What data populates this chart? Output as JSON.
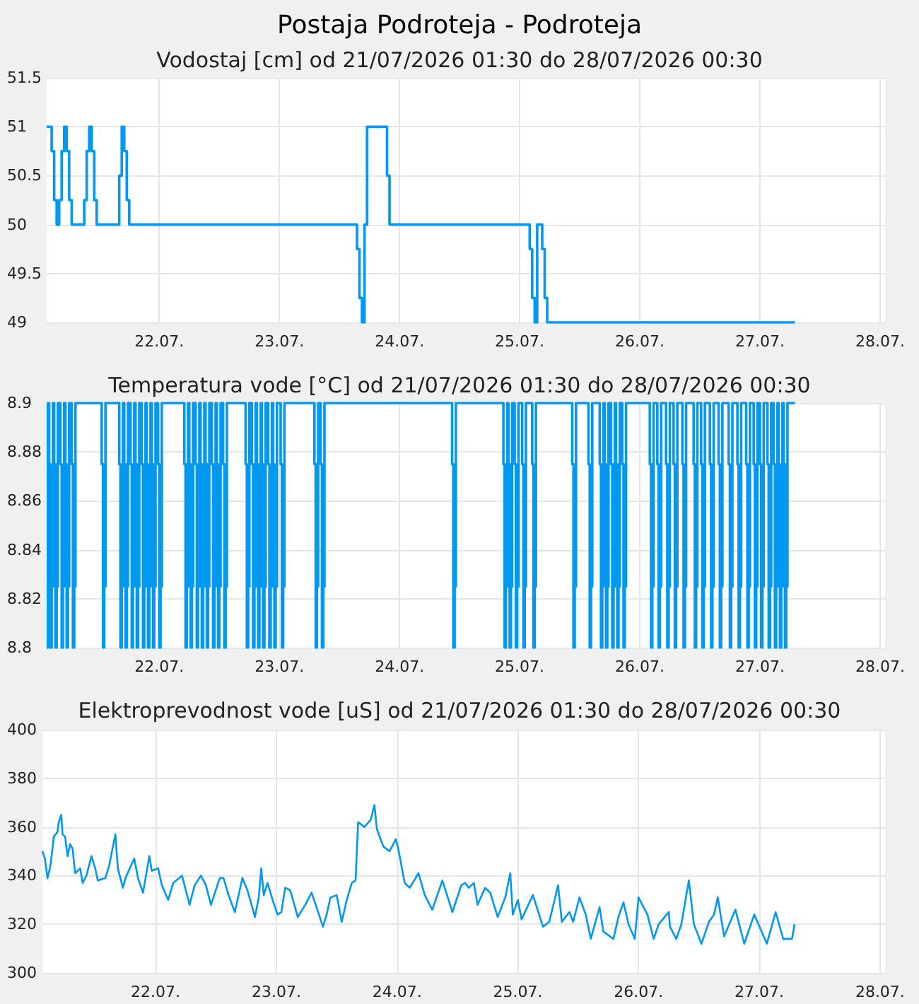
{
  "chart_data": [
    {
      "type": "step",
      "title": "Postaja Podroteja - Podroteja",
      "subtitle": "Vodostaj [cm] od 21/07/2026 01:30 do 28/07/2026 00:30",
      "color": "#0098f0",
      "marker": "none",
      "grid": true,
      "x": [
        "2026-07-21T01:30",
        "2026-07-21T02:30",
        "2026-07-21T03:00",
        "2026-07-21T03:30",
        "2026-07-21T04:00",
        "2026-07-21T04:30",
        "2026-07-21T05:00",
        "2026-07-21T05:30",
        "2026-07-21T06:00",
        "2026-07-21T06:30",
        "2026-07-21T09:00",
        "2026-07-21T09:30",
        "2026-07-21T10:00",
        "2026-07-21T10:30",
        "2026-07-21T11:00",
        "2026-07-21T11:30",
        "2026-07-21T16:00",
        "2026-07-21T16:30",
        "2026-07-21T17:00",
        "2026-07-21T17:30",
        "2026-07-21T18:00",
        "2026-07-23T15:30",
        "2026-07-23T16:00",
        "2026-07-23T16:30",
        "2026-07-23T17:00",
        "2026-07-23T17:30",
        "2026-07-23T21:30",
        "2026-07-23T22:00",
        "2026-07-25T02:00",
        "2026-07-25T02:30",
        "2026-07-25T03:00",
        "2026-07-25T03:30",
        "2026-07-25T04:30",
        "2026-07-25T05:00",
        "2026-07-25T05:30",
        "2026-07-27T07:00"
      ],
      "values": [
        51,
        50.75,
        50.25,
        50,
        50.25,
        50.75,
        51,
        50.75,
        50.25,
        50,
        50.25,
        50.75,
        51,
        50.75,
        50.25,
        50,
        50.5,
        51,
        50.75,
        50.25,
        50,
        49.75,
        49.25,
        49,
        50,
        51,
        50.5,
        50,
        49.75,
        49.25,
        49,
        50,
        49.75,
        49.25,
        49,
        49
      ],
      "xlim": [
        "2026-07-21T01:30",
        "2026-07-28T01:00"
      ],
      "xticks": [
        {
          "value": "2026-07-22",
          "label": "22.07."
        },
        {
          "value": "2026-07-23",
          "label": "23.07."
        },
        {
          "value": "2026-07-24",
          "label": "24.07."
        },
        {
          "value": "2026-07-25",
          "label": "25.07."
        },
        {
          "value": "2026-07-26",
          "label": "26.07."
        },
        {
          "value": "2026-07-27",
          "label": "27.07."
        },
        {
          "value": "2026-07-28",
          "label": "28.07."
        }
      ],
      "ylim": [
        49,
        51.5
      ],
      "yticks": [
        49,
        49.5,
        50,
        50.5,
        51,
        51.5
      ]
    },
    {
      "type": "step",
      "title": "Temperatura vode [°C] od 21/07/2026 01:30 do 28/07/2026 00:30",
      "color": "#0098f0",
      "marker": "none",
      "grid": true,
      "x": [
        "2026-07-21T01:30",
        "2026-07-21T01:45",
        "2026-07-21T02:00",
        "2026-07-21T02:15",
        "2026-07-21T02:30",
        "2026-07-21T02:45",
        "2026-07-21T03:00",
        "2026-07-21T03:15",
        "2026-07-21T03:30",
        "2026-07-21T03:45",
        "2026-07-21T04:15",
        "2026-07-21T04:30",
        "2026-07-21T04:45",
        "2026-07-21T05:00",
        "2026-07-21T05:15",
        "2026-07-21T05:30",
        "2026-07-21T05:45",
        "2026-07-21T06:00",
        "2026-07-21T06:30",
        "2026-07-21T06:45",
        "2026-07-21T07:00",
        "2026-07-21T07:15",
        "2026-07-21T12:30",
        "2026-07-21T12:45",
        "2026-07-21T13:00",
        "2026-07-21T13:15",
        "2026-07-21T16:00",
        "2026-07-21T16:15",
        "2026-07-21T16:30",
        "2026-07-21T16:45",
        "2026-07-21T17:00",
        "2026-07-21T17:15",
        "2026-07-21T17:30",
        "2026-07-21T17:45",
        "2026-07-21T18:15",
        "2026-07-21T18:30",
        "2026-07-21T18:45",
        "2026-07-21T19:00",
        "2026-07-21T19:15",
        "2026-07-21T19:30",
        "2026-07-21T19:45",
        "2026-07-21T20:00",
        "2026-07-21T20:30",
        "2026-07-21T20:45",
        "2026-07-21T21:00",
        "2026-07-21T21:15",
        "2026-07-21T21:30",
        "2026-07-21T21:45",
        "2026-07-21T22:00",
        "2026-07-21T22:15",
        "2026-07-21T22:30",
        "2026-07-21T22:45",
        "2026-07-21T23:00",
        "2026-07-21T23:15",
        "2026-07-21T23:45",
        "2026-07-22T00:00",
        "2026-07-22T00:15",
        "2026-07-22T00:30",
        "2026-07-22T05:00",
        "2026-07-22T05:15",
        "2026-07-22T05:30",
        "2026-07-22T05:45",
        "2026-07-22T06:00",
        "2026-07-22T06:15",
        "2026-07-22T06:30",
        "2026-07-22T06:45",
        "2026-07-22T07:15",
        "2026-07-22T07:30",
        "2026-07-22T07:45",
        "2026-07-22T08:00",
        "2026-07-22T08:15",
        "2026-07-22T08:30",
        "2026-07-22T08:45",
        "2026-07-22T09:00",
        "2026-07-22T09:15",
        "2026-07-22T09:30",
        "2026-07-22T09:45",
        "2026-07-22T10:00",
        "2026-07-22T10:30",
        "2026-07-22T10:45",
        "2026-07-22T11:00",
        "2026-07-22T11:15",
        "2026-07-22T11:30",
        "2026-07-22T11:45",
        "2026-07-22T12:00",
        "2026-07-22T12:15",
        "2026-07-22T12:45",
        "2026-07-22T13:00",
        "2026-07-22T13:15",
        "2026-07-22T13:30",
        "2026-07-22T17:15",
        "2026-07-22T17:30",
        "2026-07-22T17:45",
        "2026-07-22T18:00",
        "2026-07-22T18:30",
        "2026-07-22T18:45",
        "2026-07-22T19:00",
        "2026-07-22T19:15",
        "2026-07-22T19:30",
        "2026-07-22T19:45",
        "2026-07-22T20:00",
        "2026-07-22T20:15",
        "2026-07-22T20:30",
        "2026-07-22T20:45",
        "2026-07-22T21:00",
        "2026-07-22T21:15",
        "2026-07-22T21:45",
        "2026-07-22T22:00",
        "2026-07-22T22:15",
        "2026-07-22T22:30",
        "2026-07-22T22:45",
        "2026-07-22T23:00",
        "2026-07-22T23:15",
        "2026-07-22T23:30",
        "2026-07-23T00:15",
        "2026-07-23T00:30",
        "2026-07-23T00:45",
        "2026-07-23T01:00",
        "2026-07-23T07:00",
        "2026-07-23T07:15",
        "2026-07-23T07:30",
        "2026-07-23T07:45",
        "2026-07-23T08:15",
        "2026-07-23T08:30",
        "2026-07-23T08:45",
        "2026-07-23T09:00",
        "2026-07-24T10:30",
        "2026-07-24T10:45",
        "2026-07-24T11:00",
        "2026-07-24T11:15",
        "2026-07-24T20:45",
        "2026-07-24T21:00",
        "2026-07-24T21:15",
        "2026-07-24T21:30",
        "2026-07-24T21:45",
        "2026-07-24T22:00",
        "2026-07-24T22:15",
        "2026-07-24T22:30",
        "2026-07-24T23:00",
        "2026-07-24T23:15",
        "2026-07-24T23:30",
        "2026-07-24T23:45",
        "2026-07-25T00:30",
        "2026-07-25T00:45",
        "2026-07-25T01:00",
        "2026-07-25T01:15",
        "2026-07-25T02:30",
        "2026-07-25T02:45",
        "2026-07-25T03:00",
        "2026-07-25T03:15",
        "2026-07-25T10:30",
        "2026-07-25T10:45",
        "2026-07-25T11:00",
        "2026-07-25T11:15",
        "2026-07-25T13:45",
        "2026-07-25T14:00",
        "2026-07-25T14:15",
        "2026-07-25T14:30",
        "2026-07-25T16:00",
        "2026-07-25T16:15",
        "2026-07-25T16:30",
        "2026-07-25T16:45",
        "2026-07-25T17:00",
        "2026-07-25T17:15",
        "2026-07-25T17:30",
        "2026-07-25T17:45",
        "2026-07-25T18:15",
        "2026-07-25T18:30",
        "2026-07-25T18:45",
        "2026-07-25T19:00",
        "2026-07-25T19:15",
        "2026-07-25T19:30",
        "2026-07-25T19:45",
        "2026-07-25T20:00",
        "2026-07-25T20:30",
        "2026-07-25T20:45",
        "2026-07-25T21:00",
        "2026-07-25T21:15",
        "2026-07-26T02:00",
        "2026-07-26T02:15",
        "2026-07-26T02:30",
        "2026-07-26T02:45",
        "2026-07-26T03:30",
        "2026-07-26T03:45",
        "2026-07-26T04:00",
        "2026-07-26T04:15",
        "2026-07-26T05:15",
        "2026-07-26T05:30",
        "2026-07-26T05:45",
        "2026-07-26T06:00",
        "2026-07-26T06:45",
        "2026-07-26T07:00",
        "2026-07-26T07:15",
        "2026-07-26T07:30",
        "2026-07-26T08:30",
        "2026-07-26T08:45",
        "2026-07-26T09:00",
        "2026-07-26T09:15",
        "2026-07-26T10:45",
        "2026-07-26T11:00",
        "2026-07-26T11:15",
        "2026-07-26T11:30",
        "2026-07-26T12:15",
        "2026-07-26T12:30",
        "2026-07-26T12:45",
        "2026-07-26T13:00",
        "2026-07-26T14:00",
        "2026-07-26T14:15",
        "2026-07-26T14:30",
        "2026-07-26T14:45",
        "2026-07-26T15:45",
        "2026-07-26T16:00",
        "2026-07-26T16:15",
        "2026-07-26T16:30",
        "2026-07-26T17:45",
        "2026-07-26T18:00",
        "2026-07-26T18:15",
        "2026-07-26T18:30",
        "2026-07-26T19:30",
        "2026-07-26T19:45",
        "2026-07-26T20:00",
        "2026-07-26T20:15",
        "2026-07-26T21:15",
        "2026-07-26T21:30",
        "2026-07-26T21:45",
        "2026-07-26T22:00",
        "2026-07-26T22:45",
        "2026-07-26T23:00",
        "2026-07-26T23:15",
        "2026-07-26T23:30",
        "2026-07-27T00:00",
        "2026-07-27T00:15",
        "2026-07-27T00:30",
        "2026-07-27T00:45",
        "2026-07-27T01:30",
        "2026-07-27T01:45",
        "2026-07-27T02:00",
        "2026-07-27T02:15",
        "2026-07-27T02:45",
        "2026-07-27T03:00",
        "2026-07-27T03:15",
        "2026-07-27T03:30",
        "2026-07-27T03:45",
        "2026-07-27T04:00",
        "2026-07-27T04:15",
        "2026-07-27T04:30",
        "2026-07-27T04:45",
        "2026-07-27T05:00",
        "2026-07-27T05:15",
        "2026-07-27T05:30",
        "2026-07-27T07:00"
      ],
      "values": [
        8.8,
        8.9,
        8.875,
        8.8,
        8.825,
        8.9,
        8.875,
        8.8,
        8.825,
        8.9,
        8.875,
        8.8,
        8.825,
        8.9,
        8.875,
        8.8,
        8.825,
        8.9,
        8.875,
        8.8,
        8.825,
        8.9,
        8.875,
        8.8,
        8.825,
        8.9,
        8.875,
        8.8,
        8.825,
        8.9,
        8.875,
        8.8,
        8.825,
        8.9,
        8.875,
        8.8,
        8.825,
        8.9,
        8.875,
        8.8,
        8.825,
        8.9,
        8.875,
        8.8,
        8.825,
        8.9,
        8.875,
        8.8,
        8.825,
        8.9,
        8.875,
        8.8,
        8.825,
        8.9,
        8.875,
        8.8,
        8.825,
        8.9,
        8.875,
        8.8,
        8.825,
        8.9,
        8.875,
        8.8,
        8.825,
        8.9,
        8.875,
        8.8,
        8.825,
        8.9,
        8.875,
        8.8,
        8.825,
        8.9,
        8.875,
        8.8,
        8.825,
        8.9,
        8.875,
        8.8,
        8.825,
        8.9,
        8.875,
        8.8,
        8.825,
        8.9,
        8.875,
        8.8,
        8.825,
        8.9,
        8.875,
        8.8,
        8.825,
        8.9,
        8.875,
        8.8,
        8.825,
        8.9,
        8.875,
        8.8,
        8.825,
        8.9,
        8.875,
        8.8,
        8.825,
        8.9,
        8.875,
        8.8,
        8.825,
        8.9,
        8.875,
        8.8,
        8.825,
        8.9,
        8.875,
        8.8,
        8.825,
        8.9,
        8.875,
        8.8,
        8.825,
        8.9,
        8.875,
        8.8,
        8.825,
        8.9,
        8.875,
        8.8,
        8.825,
        8.9,
        8.875,
        8.8,
        8.825,
        8.9,
        8.875,
        8.8,
        8.825,
        8.9,
        8.875,
        8.8,
        8.825,
        8.9,
        8.875,
        8.8,
        8.825,
        8.9,
        8.875,
        8.8,
        8.825,
        8.9,
        8.875,
        8.8,
        8.825,
        8.9,
        8.875,
        8.8,
        8.825,
        8.9,
        8.875,
        8.8,
        8.825,
        8.9,
        8.875,
        8.8,
        8.825,
        8.9,
        8.875,
        8.8,
        8.825,
        8.9,
        8.875,
        8.8,
        8.825,
        8.9,
        8.875,
        8.8,
        8.825,
        8.9,
        8.875,
        8.8,
        8.825,
        8.9,
        8.875,
        8.8,
        8.825,
        8.9,
        8.875,
        8.8,
        8.825,
        8.9,
        8.875,
        8.8,
        8.825,
        8.9,
        8.875,
        8.8,
        8.825,
        8.9,
        8.875,
        8.8,
        8.825,
        8.9,
        8.875,
        8.8,
        8.825,
        8.9,
        8.875,
        8.8,
        8.825,
        8.9,
        8.875,
        8.8,
        8.825,
        8.9,
        8.875,
        8.8,
        8.825,
        8.9,
        8.875,
        8.8,
        8.825,
        8.9,
        8.875,
        8.8,
        8.825,
        8.9,
        8.875,
        8.8,
        8.825,
        8.9,
        8.875,
        8.8,
        8.825,
        8.9,
        8.875,
        8.8,
        8.825,
        8.9,
        8.875,
        8.8,
        8.825,
        8.9,
        8.875,
        8.8,
        8.825,
        8.9,
        8.875,
        8.8,
        8.825,
        8.9,
        8.9
      ],
      "xlim": [
        "2026-07-21T01:30",
        "2026-07-28T01:00"
      ],
      "xticks": [
        {
          "value": "2026-07-22",
          "label": "22.07."
        },
        {
          "value": "2026-07-23",
          "label": "23.07."
        },
        {
          "value": "2026-07-24",
          "label": "24.07."
        },
        {
          "value": "2026-07-25",
          "label": "25.07."
        },
        {
          "value": "2026-07-26",
          "label": "26.07."
        },
        {
          "value": "2026-07-27",
          "label": "27.07."
        },
        {
          "value": "2026-07-28",
          "label": "28.07."
        }
      ],
      "ylim": [
        8.8,
        8.9
      ],
      "yticks": [
        8.8,
        8.82,
        8.84,
        8.86,
        8.88,
        8.9
      ]
    },
    {
      "type": "line",
      "title": "Elektroprevodnost vode [uS] od 21/07/2026 01:30 do 28/07/2026 00:30",
      "color": "#0098f0",
      "marker": "none",
      "grid": true,
      "x": [
        "2026-07-21T01:30",
        "2026-07-21T02:00",
        "2026-07-21T02:15",
        "2026-07-21T02:30",
        "2026-07-21T03:00",
        "2026-07-21T03:30",
        "2026-07-21T03:45",
        "2026-07-21T04:30",
        "2026-07-21T04:45",
        "2026-07-21T05:15",
        "2026-07-21T05:30",
        "2026-07-21T06:00",
        "2026-07-21T06:30",
        "2026-07-21T07:00",
        "2026-07-21T07:30",
        "2026-07-21T08:00",
        "2026-07-21T09:00",
        "2026-07-21T09:30",
        "2026-07-21T10:15",
        "2026-07-21T11:15",
        "2026-07-21T12:00",
        "2026-07-21T12:30",
        "2026-07-21T14:00",
        "2026-07-21T14:45",
        "2026-07-21T16:00",
        "2026-07-21T16:30",
        "2026-07-21T17:30",
        "2026-07-21T18:00",
        "2026-07-21T19:45",
        "2026-07-21T20:30",
        "2026-07-21T21:30",
        "2026-07-21T22:45",
        "2026-07-21T23:15",
        "2026-07-22T00:30",
        "2026-07-22T01:15",
        "2026-07-22T02:30",
        "2026-07-22T03:30",
        "2026-07-22T05:15",
        "2026-07-22T06:00",
        "2026-07-22T06:45",
        "2026-07-22T07:45",
        "2026-07-22T09:00",
        "2026-07-22T10:00",
        "2026-07-22T11:00",
        "2026-07-22T12:45",
        "2026-07-22T13:30",
        "2026-07-22T14:30",
        "2026-07-22T15:45",
        "2026-07-22T17:15",
        "2026-07-22T18:15",
        "2026-07-22T19:45",
        "2026-07-22T20:30",
        "2026-07-22T21:00",
        "2026-07-22T21:30",
        "2026-07-22T22:15",
        "2026-07-22T23:15",
        "2026-07-23T00:15",
        "2026-07-23T01:00",
        "2026-07-23T01:45",
        "2026-07-23T02:45",
        "2026-07-23T04:15",
        "2026-07-23T05:45",
        "2026-07-23T07:00",
        "2026-07-23T08:00",
        "2026-07-23T09:15",
        "2026-07-23T10:00",
        "2026-07-23T10:45",
        "2026-07-23T12:00",
        "2026-07-23T13:00",
        "2026-07-23T14:00",
        "2026-07-23T15:00",
        "2026-07-23T15:45",
        "2026-07-23T16:15",
        "2026-07-23T17:30",
        "2026-07-23T18:45",
        "2026-07-23T19:30",
        "2026-07-23T20:00",
        "2026-07-23T21:15",
        "2026-07-23T22:30",
        "2026-07-23T23:45",
        "2026-07-24T00:15",
        "2026-07-24T01:30",
        "2026-07-24T02:30",
        "2026-07-24T04:15",
        "2026-07-24T05:30",
        "2026-07-24T07:00",
        "2026-07-24T09:00",
        "2026-07-24T11:00",
        "2026-07-24T12:45",
        "2026-07-24T13:30",
        "2026-07-24T14:15",
        "2026-07-24T15:15",
        "2026-07-24T16:00",
        "2026-07-24T17:30",
        "2026-07-24T18:30",
        "2026-07-24T20:00",
        "2026-07-24T21:30",
        "2026-07-24T22:30",
        "2026-07-24T23:00",
        "2026-07-25T00:00",
        "2026-07-25T00:45",
        "2026-07-25T03:00",
        "2026-07-25T05:00",
        "2026-07-25T06:15",
        "2026-07-25T08:00",
        "2026-07-25T08:45",
        "2026-07-25T10:15",
        "2026-07-25T11:00",
        "2026-07-25T12:15",
        "2026-07-25T13:30",
        "2026-07-25T14:30",
        "2026-07-25T16:15",
        "2026-07-25T17:00",
        "2026-07-25T19:00",
        "2026-07-25T20:00",
        "2026-07-25T21:00",
        "2026-07-25T22:00",
        "2026-07-25T23:15",
        "2026-07-26T00:00",
        "2026-07-26T01:45",
        "2026-07-26T03:00",
        "2026-07-26T04:00",
        "2026-07-26T06:00",
        "2026-07-26T06:15",
        "2026-07-26T07:30",
        "2026-07-26T08:30",
        "2026-07-26T10:00",
        "2026-07-26T11:00",
        "2026-07-26T12:30",
        "2026-07-26T14:00",
        "2026-07-26T15:00",
        "2026-07-26T15:45",
        "2026-07-26T17:00",
        "2026-07-26T19:15",
        "2026-07-26T21:00",
        "2026-07-26T23:00",
        "2026-07-27T01:30",
        "2026-07-27T03:15",
        "2026-07-27T04:45",
        "2026-07-27T06:30",
        "2026-07-27T07:00"
      ],
      "values": [
        350,
        347,
        343,
        339,
        343,
        351,
        356,
        358,
        362,
        365,
        357,
        356,
        348,
        353,
        351,
        341,
        343,
        337,
        340,
        348,
        343,
        338,
        339,
        344,
        357,
        343,
        335,
        339,
        347,
        339,
        333,
        348,
        342,
        343,
        336,
        330,
        337,
        340,
        334,
        328,
        336,
        340,
        336,
        328,
        339,
        339,
        332,
        325,
        339,
        334,
        323,
        331,
        343,
        332,
        337,
        330,
        324,
        325,
        335,
        334,
        323,
        328,
        333,
        327,
        319,
        324,
        331,
        332,
        321,
        330,
        337,
        338,
        362,
        360,
        363,
        369,
        359,
        352,
        350,
        355,
        351,
        337,
        335,
        341,
        332,
        326,
        338,
        325,
        336,
        337,
        335,
        337,
        328,
        335,
        333,
        323,
        331,
        341,
        324,
        330,
        322,
        332,
        319,
        321,
        336,
        321,
        325,
        321,
        331,
        324,
        314,
        327,
        317,
        314,
        323,
        329,
        320,
        314,
        331,
        324,
        314,
        320,
        325,
        319,
        314,
        320,
        338,
        320,
        312,
        321,
        324,
        331,
        315,
        326,
        312,
        324,
        312,
        325,
        314,
        314,
        320
      ],
      "xlim": [
        "2026-07-21T01:30",
        "2026-07-28T01:00"
      ],
      "xticks": [
        {
          "value": "2026-07-22",
          "label": "22.07."
        },
        {
          "value": "2026-07-23",
          "label": "23.07."
        },
        {
          "value": "2026-07-24",
          "label": "24.07."
        },
        {
          "value": "2026-07-25",
          "label": "25.07."
        },
        {
          "value": "2026-07-26",
          "label": "26.07."
        },
        {
          "value": "2026-07-27",
          "label": "27.07."
        },
        {
          "value": "2026-07-28",
          "label": "28.07."
        }
      ],
      "ylim": [
        300,
        400
      ],
      "yticks": [
        300,
        320,
        340,
        360,
        380,
        400
      ]
    }
  ]
}
